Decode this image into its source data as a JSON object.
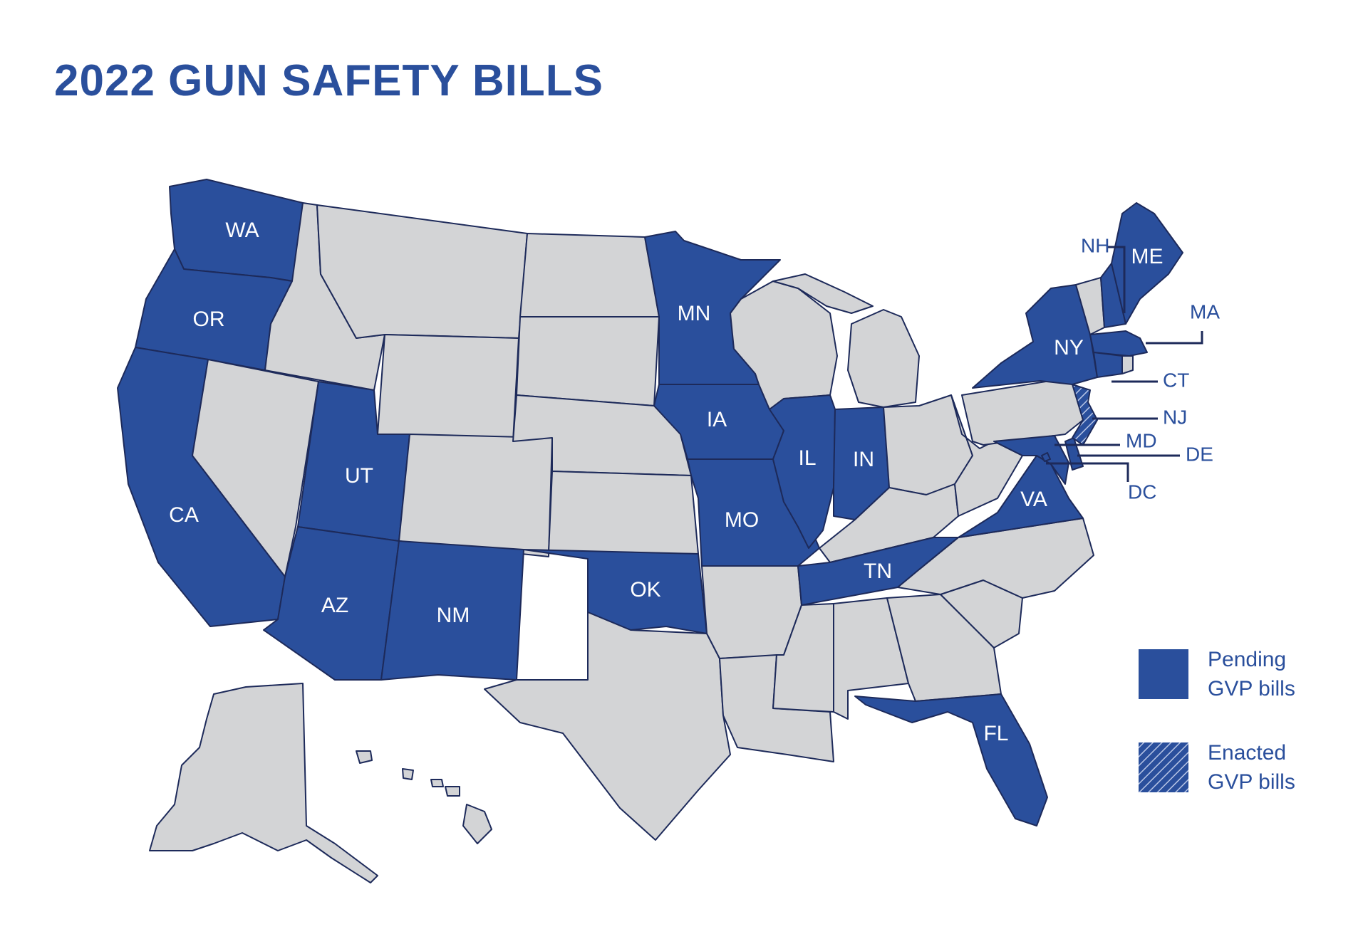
{
  "title": "2022 GUN SAFETY BILLS",
  "colors": {
    "pending": "#2a4f9c",
    "neutral": "#d3d4d6",
    "border": "#1d2a5a",
    "text": "#2a4f9c"
  },
  "states": {
    "pending": [
      "WA",
      "OR",
      "CA",
      "UT",
      "AZ",
      "NM",
      "MN",
      "IA",
      "MO",
      "OK",
      "IL",
      "IN",
      "TN",
      "FL",
      "VA",
      "NY",
      "ME",
      "NH",
      "MA",
      "CT",
      "MD",
      "DE",
      "DC"
    ],
    "enacted": [
      "NJ"
    ]
  },
  "labels": {
    "WA": "WA",
    "OR": "OR",
    "CA": "CA",
    "UT": "UT",
    "AZ": "AZ",
    "NM": "NM",
    "MN": "MN",
    "IA": "IA",
    "MO": "MO",
    "OK": "OK",
    "IL": "IL",
    "IN": "IN",
    "TN": "TN",
    "FL": "FL",
    "VA": "VA",
    "NY": "NY",
    "ME": "ME",
    "NH": "NH",
    "MA": "MA",
    "CT": "CT",
    "NJ": "NJ",
    "MD": "MD",
    "DE": "DE",
    "DC": "DC"
  },
  "legend": [
    {
      "line1": "Pending",
      "line2": "GVP bills",
      "style": "solid"
    },
    {
      "line1": "Enacted",
      "line2": "GVP bills",
      "style": "hatched"
    }
  ]
}
